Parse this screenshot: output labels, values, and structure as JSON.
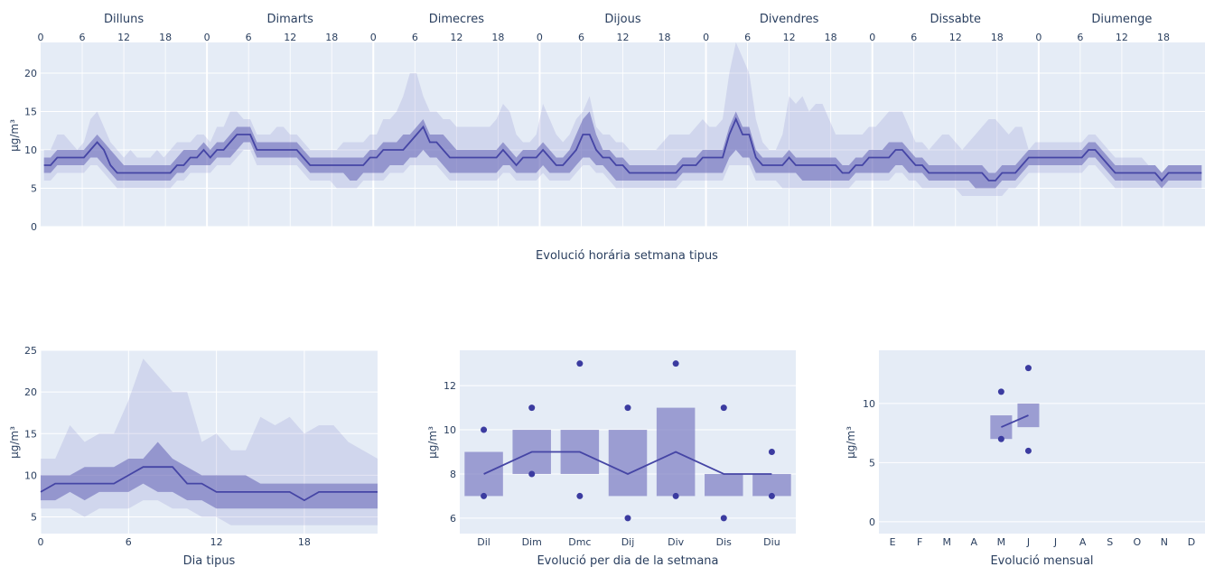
{
  "chart_data": [
    {
      "type": "line",
      "title": "Evolució horária setmana tipus",
      "ylabel": "µg/m³",
      "ylim": [
        0,
        24
      ],
      "y_ticks": [
        0,
        5,
        10,
        15,
        20
      ],
      "hour_ticks": [
        "0",
        "6",
        "12",
        "18"
      ],
      "days": [
        "Dilluns",
        "Dimarts",
        "Dimecres",
        "Dijous",
        "Divendres",
        "Dissabte",
        "Diumenge"
      ],
      "median": [
        8,
        8,
        9,
        9,
        9,
        9,
        9,
        10,
        11,
        10,
        8,
        7,
        7,
        7,
        7,
        7,
        7,
        7,
        7,
        7,
        8,
        8,
        9,
        9,
        10,
        9,
        10,
        10,
        11,
        12,
        12,
        12,
        10,
        10,
        10,
        10,
        10,
        10,
        10,
        9,
        8,
        8,
        8,
        8,
        8,
        8,
        8,
        8,
        8,
        9,
        9,
        10,
        10,
        10,
        10,
        11,
        12,
        13,
        11,
        11,
        10,
        9,
        9,
        9,
        9,
        9,
        9,
        9,
        9,
        10,
        9,
        8,
        9,
        9,
        9,
        10,
        9,
        8,
        8,
        9,
        10,
        12,
        12,
        10,
        9,
        9,
        8,
        8,
        7,
        7,
        7,
        7,
        7,
        7,
        7,
        7,
        8,
        8,
        8,
        9,
        9,
        9,
        9,
        12,
        14,
        12,
        12,
        9,
        8,
        8,
        8,
        8,
        9,
        8,
        8,
        8,
        8,
        8,
        8,
        8,
        7,
        7,
        8,
        8,
        9,
        9,
        9,
        9,
        10,
        10,
        9,
        8,
        8,
        7,
        7,
        7,
        7,
        7,
        7,
        7,
        7,
        7,
        6,
        6,
        7,
        7,
        7,
        8,
        9,
        9,
        9,
        9,
        9,
        9,
        9,
        9,
        9,
        10,
        10,
        9,
        8,
        7,
        7,
        7,
        7,
        7,
        7,
        7,
        6,
        7,
        7,
        7,
        7,
        7,
        7
      ],
      "iqr_low": [
        7,
        7,
        8,
        8,
        8,
        8,
        8,
        9,
        9,
        8,
        7,
        6,
        6,
        6,
        6,
        6,
        6,
        6,
        6,
        6,
        7,
        7,
        8,
        8,
        8,
        8,
        9,
        9,
        9,
        10,
        11,
        11,
        9,
        9,
        9,
        9,
        9,
        9,
        9,
        8,
        7,
        7,
        7,
        7,
        7,
        7,
        6,
        6,
        7,
        7,
        7,
        7,
        8,
        8,
        8,
        9,
        9,
        10,
        9,
        9,
        8,
        7,
        7,
        7,
        7,
        7,
        7,
        7,
        7,
        8,
        8,
        7,
        7,
        7,
        7,
        8,
        7,
        7,
        7,
        7,
        8,
        9,
        9,
        8,
        8,
        7,
        6,
        6,
        6,
        6,
        6,
        6,
        6,
        6,
        6,
        6,
        7,
        7,
        7,
        7,
        7,
        7,
        7,
        9,
        10,
        9,
        9,
        7,
        7,
        7,
        7,
        7,
        7,
        7,
        6,
        6,
        6,
        6,
        6,
        6,
        6,
        6,
        7,
        7,
        7,
        7,
        7,
        7,
        8,
        8,
        7,
        7,
        7,
        6,
        6,
        6,
        6,
        6,
        6,
        6,
        5,
        5,
        5,
        5,
        6,
        6,
        6,
        7,
        8,
        8,
        8,
        8,
        8,
        8,
        8,
        8,
        8,
        9,
        9,
        8,
        7,
        6,
        6,
        6,
        6,
        6,
        6,
        6,
        5,
        6,
        6,
        6,
        6,
        6,
        6
      ],
      "iqr_high": [
        9,
        9,
        10,
        10,
        10,
        10,
        10,
        11,
        12,
        11,
        10,
        9,
        8,
        8,
        8,
        8,
        8,
        8,
        8,
        8,
        9,
        10,
        10,
        10,
        11,
        10,
        11,
        11,
        12,
        13,
        13,
        13,
        11,
        11,
        11,
        11,
        11,
        11,
        11,
        10,
        9,
        9,
        9,
        9,
        9,
        9,
        9,
        9,
        9,
        10,
        10,
        11,
        11,
        11,
        12,
        12,
        13,
        14,
        12,
        12,
        12,
        11,
        10,
        10,
        10,
        10,
        10,
        10,
        10,
        11,
        10,
        9,
        10,
        10,
        10,
        11,
        10,
        9,
        9,
        10,
        12,
        14,
        15,
        12,
        10,
        10,
        9,
        9,
        8,
        8,
        8,
        8,
        8,
        8,
        8,
        8,
        9,
        9,
        9,
        10,
        10,
        10,
        10,
        13,
        15,
        13,
        13,
        10,
        9,
        9,
        9,
        9,
        10,
        9,
        9,
        9,
        9,
        9,
        9,
        9,
        8,
        8,
        9,
        9,
        10,
        10,
        10,
        11,
        11,
        11,
        10,
        9,
        9,
        8,
        8,
        8,
        8,
        8,
        8,
        8,
        8,
        8,
        7,
        7,
        8,
        8,
        8,
        9,
        10,
        10,
        10,
        10,
        10,
        10,
        10,
        10,
        10,
        11,
        11,
        10,
        9,
        8,
        8,
        8,
        8,
        8,
        8,
        8,
        7,
        8,
        8,
        8,
        8,
        8,
        8
      ],
      "range_low": [
        6,
        6,
        7,
        7,
        7,
        7,
        7,
        8,
        8,
        7,
        6,
        5,
        5,
        5,
        5,
        5,
        5,
        5,
        5,
        5,
        6,
        6,
        7,
        7,
        7,
        7,
        8,
        8,
        8,
        9,
        10,
        10,
        8,
        8,
        8,
        8,
        8,
        8,
        8,
        7,
        6,
        6,
        6,
        6,
        5,
        5,
        5,
        5,
        6,
        6,
        6,
        6,
        7,
        7,
        7,
        8,
        8,
        8,
        8,
        8,
        7,
        6,
        6,
        6,
        6,
        6,
        6,
        6,
        6,
        7,
        7,
        6,
        6,
        6,
        6,
        7,
        6,
        6,
        6,
        6,
        7,
        8,
        8,
        7,
        7,
        6,
        5,
        5,
        5,
        5,
        5,
        5,
        5,
        5,
        5,
        5,
        6,
        6,
        6,
        6,
        6,
        6,
        6,
        8,
        8,
        8,
        8,
        6,
        6,
        6,
        6,
        5,
        5,
        5,
        5,
        5,
        5,
        5,
        5,
        5,
        5,
        5,
        6,
        6,
        6,
        6,
        6,
        6,
        7,
        7,
        6,
        6,
        5,
        5,
        5,
        5,
        5,
        5,
        4,
        4,
        4,
        4,
        4,
        4,
        4,
        5,
        5,
        6,
        7,
        7,
        7,
        7,
        7,
        7,
        7,
        7,
        7,
        8,
        8,
        7,
        6,
        5,
        5,
        5,
        5,
        5,
        5,
        5,
        5,
        5,
        5,
        5,
        5,
        5,
        5
      ],
      "range_high": [
        10,
        10,
        12,
        12,
        11,
        10,
        11,
        14,
        15,
        13,
        11,
        10,
        9,
        10,
        9,
        9,
        9,
        10,
        9,
        10,
        11,
        11,
        11,
        12,
        12,
        11,
        13,
        13,
        15,
        15,
        14,
        14,
        12,
        12,
        12,
        13,
        13,
        12,
        12,
        11,
        10,
        10,
        10,
        10,
        10,
        11,
        11,
        11,
        11,
        12,
        12,
        14,
        14,
        15,
        17,
        20,
        20,
        17,
        15,
        15,
        14,
        14,
        13,
        13,
        13,
        13,
        13,
        13,
        14,
        16,
        15,
        12,
        11,
        11,
        12,
        16,
        14,
        12,
        11,
        12,
        14,
        15,
        17,
        13,
        12,
        12,
        11,
        11,
        10,
        10,
        10,
        10,
        10,
        11,
        12,
        12,
        12,
        12,
        13,
        14,
        13,
        13,
        14,
        20,
        24,
        22,
        20,
        14,
        11,
        10,
        10,
        12,
        17,
        16,
        17,
        15,
        16,
        16,
        14,
        12,
        12,
        12,
        12,
        12,
        13,
        13,
        14,
        15,
        15,
        15,
        13,
        11,
        11,
        10,
        11,
        12,
        12,
        11,
        10,
        11,
        12,
        13,
        14,
        14,
        13,
        12,
        13,
        13,
        10,
        11,
        11,
        11,
        11,
        11,
        11,
        11,
        11,
        12,
        12,
        11,
        10,
        9,
        9,
        9,
        9,
        9,
        8,
        8,
        7,
        8,
        8,
        8,
        8,
        8,
        8
      ]
    },
    {
      "type": "line",
      "xlabel": "Dia tipus",
      "ylabel": "µg/m³",
      "ylim": [
        3,
        25
      ],
      "x_ticks": [
        0,
        6,
        12,
        18
      ],
      "y_ticks": [
        5,
        10,
        15,
        20,
        25
      ],
      "median": [
        8,
        9,
        9,
        9,
        9,
        9,
        10,
        11,
        11,
        11,
        9,
        9,
        8,
        8,
        8,
        8,
        8,
        8,
        7,
        8,
        8,
        8,
        8,
        8
      ],
      "iqr_low": [
        7,
        7,
        8,
        7,
        8,
        8,
        8,
        9,
        8,
        8,
        7,
        7,
        6,
        6,
        6,
        6,
        6,
        6,
        6,
        6,
        6,
        6,
        6,
        6
      ],
      "iqr_high": [
        10,
        10,
        10,
        11,
        11,
        11,
        12,
        12,
        14,
        12,
        11,
        10,
        10,
        10,
        10,
        9,
        9,
        9,
        9,
        9,
        9,
        9,
        9,
        9
      ],
      "range_low": [
        6,
        6,
        6,
        5,
        6,
        6,
        6,
        7,
        7,
        6,
        6,
        5,
        5,
        4,
        4,
        4,
        4,
        4,
        4,
        4,
        4,
        4,
        4,
        4
      ],
      "range_high": [
        12,
        12,
        16,
        14,
        15,
        15,
        19,
        24,
        22,
        20,
        20,
        14,
        15,
        13,
        13,
        17,
        16,
        17,
        15,
        16,
        16,
        14,
        13,
        12
      ]
    },
    {
      "type": "bar",
      "xlabel": "Evolució per dia de la setmana",
      "ylabel": "µg/m³",
      "ylim": [
        5.3,
        13.6
      ],
      "y_ticks": [
        6,
        8,
        10,
        12
      ],
      "categories": [
        "Dil",
        "Dim",
        "Dmc",
        "Dij",
        "Div",
        "Dis",
        "Diu"
      ],
      "box_low": [
        7,
        8,
        8,
        7,
        7,
        7,
        7
      ],
      "box_high": [
        9,
        10,
        10,
        10,
        11,
        8,
        8
      ],
      "median": [
        8,
        9,
        9,
        8,
        9,
        8,
        8
      ],
      "min": [
        7,
        8,
        7,
        6,
        7,
        6,
        7
      ],
      "max": [
        10,
        11,
        13,
        11,
        13,
        11,
        9
      ]
    },
    {
      "type": "bar",
      "xlabel": "Evolució mensual",
      "ylabel": "µg/m³",
      "ylim": [
        -1,
        14.5
      ],
      "y_ticks": [
        0,
        5,
        10
      ],
      "categories": [
        "E",
        "F",
        "M",
        "A",
        "M",
        "J",
        "J",
        "A",
        "S",
        "O",
        "N",
        "D"
      ],
      "box_low": [
        null,
        null,
        null,
        null,
        7,
        8,
        null,
        null,
        null,
        null,
        null,
        null
      ],
      "box_high": [
        null,
        null,
        null,
        null,
        9,
        10,
        null,
        null,
        null,
        null,
        null,
        null
      ],
      "median": [
        null,
        null,
        null,
        null,
        8,
        9,
        null,
        null,
        null,
        null,
        null,
        null
      ],
      "min": [
        null,
        null,
        null,
        null,
        7,
        6,
        null,
        null,
        null,
        null,
        null,
        null
      ],
      "max": [
        null,
        null,
        null,
        null,
        11,
        13,
        null,
        null,
        null,
        null,
        null,
        null
      ]
    }
  ]
}
